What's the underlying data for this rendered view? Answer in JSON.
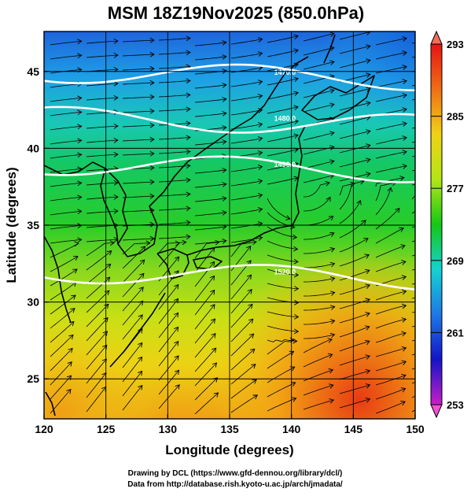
{
  "chart_data": {
    "type": "heatmap",
    "title": "MSM 18Z19Nov2025 (850.0hPa)",
    "xlabel": "Longitude (degrees)",
    "ylabel": "Latitude  (degrees)",
    "xlim": [
      120,
      150
    ],
    "ylim": [
      22.4,
      47.6
    ],
    "x_ticks": [
      "120",
      "125",
      "130",
      "135",
      "140",
      "145",
      "150"
    ],
    "y_ticks": [
      "25",
      "30",
      "35",
      "40",
      "45"
    ],
    "x_tick_values": [
      120,
      125,
      130,
      135,
      140,
      145,
      150
    ],
    "y_tick_values": [
      25,
      30,
      35,
      40,
      45
    ],
    "colorbar": {
      "min": 253,
      "max": 293,
      "labels": [
        "293",
        "285",
        "277",
        "269",
        "261",
        "253"
      ],
      "label_values": [
        293,
        285,
        277,
        269,
        261,
        253
      ],
      "stops": [
        "#c81ec8",
        "#1414c8",
        "#1e78e6",
        "#14d2d2",
        "#14c814",
        "#b4e614",
        "#f0d214",
        "#f06e14",
        "#e61414"
      ]
    },
    "contours": [
      {
        "label": "1470.0",
        "lat_approx": 45
      },
      {
        "label": "1480.0",
        "lat_approx": 42
      },
      {
        "label": "1490.0",
        "lat_approx": 39
      },
      {
        "label": "1520.0",
        "lat_approx": 32
      }
    ],
    "grid": true
  },
  "footer": {
    "line1": "Drawing by DCL (https://www.gfd-dennou.org/library/dcl/)",
    "line2": "Data from http://database.rish.kyoto-u.ac.jp/arch/jmadata/"
  }
}
